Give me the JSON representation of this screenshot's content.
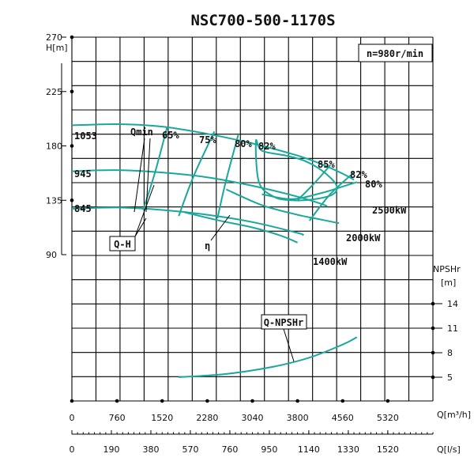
{
  "chart_data": {
    "type": "line",
    "title": "NSC700-500-1170S",
    "speed_label": "n=980r/min",
    "head_axis": {
      "label": "H[m]",
      "ticks": [
        270,
        225,
        180,
        135,
        90
      ],
      "ylim": [
        90,
        270
      ]
    },
    "npsh_axis": {
      "label_top": "NPSHr",
      "label_unit": "[m]",
      "ticks": [
        14,
        11,
        8,
        5
      ],
      "ylim": [
        2,
        14
      ]
    },
    "flow_axis_m3h": {
      "label": "Q[m³/h]",
      "ticks": [
        0,
        760,
        1520,
        2280,
        3040,
        3800,
        4560,
        5320
      ],
      "xlim": [
        0,
        6080
      ]
    },
    "flow_axis_ls": {
      "label": "Q[l/s]",
      "ticks": [
        0,
        190,
        380,
        570,
        760,
        950,
        1140,
        1330,
        1520
      ]
    },
    "impeller_labels": [
      "1053",
      "945",
      "845"
    ],
    "qh_series": [
      {
        "name": "1053",
        "x": [
          0,
          760,
          1520,
          2280,
          3040,
          3800,
          4200,
          4560,
          4750
        ],
        "y": [
          197,
          198,
          196,
          190,
          182,
          172,
          165,
          157,
          152
        ]
      },
      {
        "name": "945",
        "x": [
          0,
          760,
          1520,
          2280,
          3040,
          3800,
          4200,
          4300
        ],
        "y": [
          159,
          160,
          158,
          154,
          147,
          138,
          132,
          130
        ]
      },
      {
        "name": "845",
        "x": [
          0,
          760,
          1520,
          2280,
          3040,
          3800,
          3900
        ],
        "y": [
          128,
          129,
          127,
          123,
          117,
          108,
          106
        ]
      }
    ],
    "efficiency_labels": [
      "65%",
      "75%",
      "80%",
      "82%",
      "85%",
      "82%",
      "80%"
    ],
    "efficiency_series": [
      {
        "name": "65%",
        "x": [
          1600,
          1400,
          1200
        ],
        "y": [
          195,
          158,
          127
        ]
      },
      {
        "name": "75%",
        "x": [
          2400,
          2050,
          1800
        ],
        "y": [
          192,
          155,
          122
        ]
      },
      {
        "name": "80%",
        "x": [
          2800,
          2600,
          2450
        ],
        "y": [
          189,
          152,
          120
        ]
      },
      {
        "name": "85%",
        "x": [
          3100,
          3150,
          3400,
          3700,
          4100,
          4400,
          4450,
          4200,
          3900,
          3600,
          3200,
          3100
        ],
        "y": [
          184,
          150,
          138,
          135,
          136,
          140,
          148,
          160,
          168,
          172,
          176,
          184
        ]
      },
      {
        "name": "82% right",
        "x": [
          3800,
          4100,
          4350
        ],
        "y": [
          135,
          150,
          164
        ]
      },
      {
        "name": "80% right",
        "x": [
          4000,
          4350,
          4750
        ],
        "y": [
          118,
          140,
          158
        ]
      }
    ],
    "power_labels": [
      "2500kW",
      "2000kW",
      "1400kW"
    ],
    "power_series": [
      {
        "name": "2500kW",
        "x": [
          3200,
          3700,
          4200,
          4600,
          4800
        ],
        "y": [
          140,
          136,
          141,
          147,
          150
        ]
      },
      {
        "name": "2000kW",
        "x": [
          2600,
          3200,
          3800,
          4200,
          4500
        ],
        "y": [
          144,
          131,
          123,
          119,
          116
        ]
      },
      {
        "name": "1400kW",
        "x": [
          1900,
          2500,
          3000,
          3500,
          3800
        ],
        "y": [
          125,
          118,
          113,
          106,
          100
        ]
      }
    ],
    "npsh_series": {
      "name": "Q-NPSHr",
      "x": [
        1800,
        2600,
        3400,
        4000,
        4560,
        4800
      ],
      "y": [
        5,
        5.4,
        6.3,
        7.4,
        9,
        9.9
      ]
    },
    "annotations": {
      "qmin": "Qmin",
      "qh": "Q-H",
      "eta": "η",
      "npsh": "Q-NPSHr"
    }
  }
}
